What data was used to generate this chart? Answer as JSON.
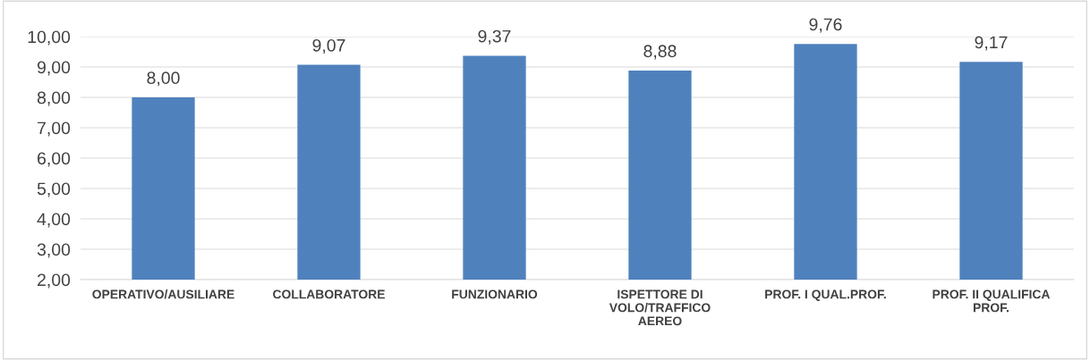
{
  "chart_data": {
    "type": "bar",
    "categories": [
      "OPERATIVO/AUSILIARE",
      "COLLABORATORE",
      "FUNZIONARIO",
      "ISPETTORE DI\nVOLO/TRAFFICO\nAEREO",
      "PROF. I QUAL.PROF.",
      "PROF. II QUALIFICA\nPROF."
    ],
    "values": [
      8.0,
      9.07,
      9.37,
      8.88,
      9.76,
      9.17
    ],
    "value_labels": [
      "8,00",
      "9,07",
      "9,37",
      "8,88",
      "9,76",
      "9,17"
    ],
    "color": "#4f81bd",
    "ylim": [
      2,
      10
    ],
    "yticks": [
      {
        "value": 2,
        "label": "2,00"
      },
      {
        "value": 3,
        "label": "3,00"
      },
      {
        "value": 4,
        "label": "4,00"
      },
      {
        "value": 5,
        "label": "5,00"
      },
      {
        "value": 6,
        "label": "6,00"
      },
      {
        "value": 7,
        "label": "7,00"
      },
      {
        "value": 8,
        "label": "8,00"
      },
      {
        "value": 9,
        "label": "9,00"
      },
      {
        "value": 10,
        "label": "10,00"
      }
    ],
    "grid": "y",
    "legend": false
  }
}
